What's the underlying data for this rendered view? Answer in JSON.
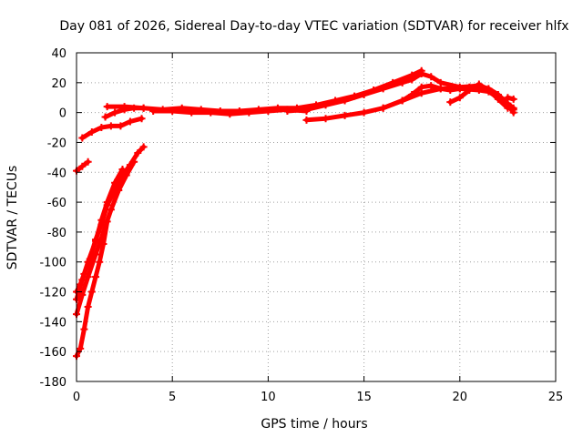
{
  "chart_data": {
    "type": "scatter",
    "title": "Day 081 of 2026, Sidereal Day-to-day VTEC variation (SDTVAR) for receiver hlfx",
    "xlabel": "GPS time / hours",
    "ylabel": "SDTVAR / TECUs",
    "xlim": [
      0,
      25
    ],
    "ylim": [
      -180,
      40
    ],
    "x_ticks": [
      0,
      5,
      10,
      15,
      20,
      25
    ],
    "y_ticks": [
      -180,
      -160,
      -140,
      -120,
      -100,
      -80,
      -60,
      -40,
      -20,
      0,
      20,
      40
    ],
    "x_tick_labels": [
      "0",
      "5",
      "10",
      "15",
      "20",
      "25"
    ],
    "y_tick_labels": [
      "-180",
      "-160",
      "-140",
      "-120",
      "-100",
      "-80",
      "-60",
      "-40",
      "-20",
      "0",
      "20",
      "40"
    ],
    "grid": true,
    "marker": "plus",
    "colors": {
      "series": "#ff0000",
      "grid": "#a0a0a0",
      "axes": "#000000"
    },
    "series": [
      {
        "x": [
          0.0,
          0.3,
          0.6
        ],
        "y": [
          -39,
          -36,
          -33
        ]
      },
      {
        "x": [
          0.3,
          0.8,
          1.3,
          1.8,
          2.3,
          2.8,
          3.4
        ],
        "y": [
          -17,
          -13,
          -10,
          -9,
          -9,
          -6,
          -4
        ]
      },
      {
        "x": [
          1.5,
          2.0,
          2.5,
          3.0,
          3.5
        ],
        "y": [
          -3,
          0,
          2,
          3,
          3
        ]
      },
      {
        "x": [
          1.6,
          2.5,
          3.5,
          4.5,
          5.5,
          6.5,
          7.5,
          8.5,
          9.5,
          10.5,
          11.5,
          12.5,
          13.5,
          14.5,
          15.5,
          16.5,
          17.5,
          18.0
        ],
        "y": [
          4,
          4,
          3,
          2,
          3,
          2,
          1,
          1,
          2,
          3,
          3,
          5,
          8,
          11,
          15,
          20,
          25,
          28
        ]
      },
      {
        "x": [
          4.0,
          5.0,
          6.0,
          7.0,
          8.0,
          9.0,
          10.0,
          11.0,
          12.0
        ],
        "y": [
          1,
          1,
          0,
          0,
          -1,
          0,
          1,
          2,
          1
        ]
      },
      {
        "x": [
          11.0,
          12.0,
          13.0,
          14.0,
          15.0,
          16.0,
          17.0,
          17.5,
          18.0,
          18.5,
          19.0,
          20.0,
          21.0,
          21.5,
          22.0,
          22.5,
          22.8
        ],
        "y": [
          1,
          2,
          5,
          8,
          12,
          16,
          20,
          22,
          26,
          24,
          20,
          17,
          18,
          16,
          12,
          6,
          2
        ]
      },
      {
        "x": [
          12.0,
          13.0,
          14.0,
          15.0,
          16.0,
          17.0,
          17.5,
          18.0,
          18.5,
          19.0,
          19.5,
          20.0,
          20.5,
          21.0,
          21.5,
          22.0,
          22.5,
          22.8
        ],
        "y": [
          -5,
          -4,
          -2,
          0,
          3,
          8,
          12,
          17,
          18,
          16,
          15,
          16,
          17,
          18,
          15,
          10,
          5,
          0
        ]
      },
      {
        "x": [
          16.0,
          17.0,
          18.0,
          19.0,
          20.0,
          21.0,
          21.5,
          22.0,
          22.5,
          22.8
        ],
        "y": [
          3,
          8,
          13,
          16,
          16,
          15,
          14,
          10,
          6,
          3
        ]
      },
      {
        "x": [
          19.5,
          20.0,
          20.5,
          21.0,
          21.5,
          22.0,
          22.5
        ],
        "y": [
          7,
          10,
          15,
          19,
          15,
          9,
          3
        ]
      },
      {
        "x": [
          22.5,
          22.8
        ],
        "y": [
          10,
          9
        ]
      },
      {
        "x": [
          0.0,
          0.2,
          0.4,
          0.7,
          1.0,
          1.3,
          1.6,
          2.0,
          2.4,
          2.8,
          3.2,
          3.5
        ],
        "y": [
          -120,
          -115,
          -108,
          -98,
          -85,
          -75,
          -62,
          -52,
          -42,
          -35,
          -27,
          -23
        ]
      },
      {
        "x": [
          0.0,
          0.3,
          0.6,
          1.0,
          1.4,
          1.8,
          2.2,
          2.6,
          3.0
        ],
        "y": [
          -135,
          -122,
          -110,
          -95,
          -80,
          -65,
          -52,
          -42,
          -33
        ]
      },
      {
        "x": [
          0.0,
          0.3,
          0.6,
          1.0,
          1.3,
          1.6,
          2.0,
          2.4
        ],
        "y": [
          -125,
          -112,
          -100,
          -86,
          -72,
          -60,
          -47,
          -38
        ]
      },
      {
        "x": [
          0.0,
          0.2,
          0.4,
          0.6,
          0.8,
          1.0,
          1.2,
          1.4,
          1.6
        ],
        "y": [
          -163,
          -158,
          -145,
          -130,
          -120,
          -110,
          -100,
          -88,
          -73
        ]
      }
    ]
  }
}
